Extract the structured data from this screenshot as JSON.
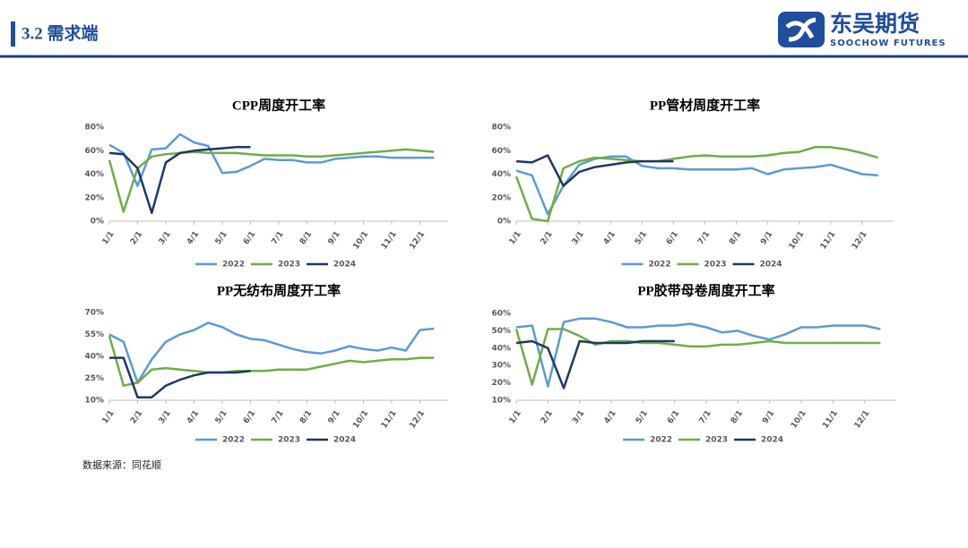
{
  "header": {
    "section": "3.2 需求端",
    "logo_cn": "东吴期货",
    "logo_en": "SOOCHOW FUTURES"
  },
  "source": "数据来源：同花顺",
  "chart_data": [
    {
      "type": "line",
      "title": "CPP周度开工率",
      "xlim": [
        0,
        24
      ],
      "xticks": [
        {
          "value": 0,
          "label": "1/1"
        },
        {
          "value": 2,
          "label": "2/1"
        },
        {
          "value": 4,
          "label": "3/1"
        },
        {
          "value": 6,
          "label": "4/1"
        },
        {
          "value": 8,
          "label": "5/1"
        },
        {
          "value": 10,
          "label": "6/1"
        },
        {
          "value": 12,
          "label": "7/1"
        },
        {
          "value": 14,
          "label": "8/1"
        },
        {
          "value": 16,
          "label": "9/1"
        },
        {
          "value": 18,
          "label": "10/1"
        },
        {
          "value": 20,
          "label": "11/1"
        },
        {
          "value": 22,
          "label": "12/1"
        }
      ],
      "ylim": [
        0,
        80
      ],
      "yticks": [
        {
          "value": 0,
          "label": "0%"
        },
        {
          "value": 20,
          "label": "20%"
        },
        {
          "value": 40,
          "label": "40%"
        },
        {
          "value": 60,
          "label": "60%"
        },
        {
          "value": 80,
          "label": "80%"
        }
      ],
      "grid": false,
      "legend": "bottom",
      "series": [
        {
          "name": "2022",
          "color": "#5b9bd5",
          "values": [
            65,
            58,
            30,
            61,
            62,
            74,
            67,
            64,
            41,
            42,
            47,
            53,
            52,
            52,
            50,
            50,
            53,
            54,
            55,
            55,
            54,
            54,
            54,
            54
          ]
        },
        {
          "name": "2023",
          "color": "#70ad47",
          "values": [
            52,
            8,
            45,
            55,
            57,
            58,
            59,
            58,
            58,
            58,
            57,
            56,
            56,
            56,
            55,
            55,
            56,
            57,
            58,
            59,
            60,
            61,
            60,
            59
          ]
        },
        {
          "name": "2024",
          "color": "#1f3864",
          "values": [
            58,
            57,
            45,
            7,
            50,
            58,
            60,
            61,
            62,
            63,
            63
          ]
        }
      ]
    },
    {
      "type": "line",
      "title": "PP管材周度开工率",
      "xlim": [
        0,
        24
      ],
      "xticks": [
        {
          "value": 0,
          "label": "1/1"
        },
        {
          "value": 2,
          "label": "2/1"
        },
        {
          "value": 4,
          "label": "3/1"
        },
        {
          "value": 6,
          "label": "4/1"
        },
        {
          "value": 8,
          "label": "5/1"
        },
        {
          "value": 10,
          "label": "6/1"
        },
        {
          "value": 12,
          "label": "7/1"
        },
        {
          "value": 14,
          "label": "8/1"
        },
        {
          "value": 16,
          "label": "9/1"
        },
        {
          "value": 18,
          "label": "10/1"
        },
        {
          "value": 20,
          "label": "11/1"
        },
        {
          "value": 22,
          "label": "12/1"
        }
      ],
      "ylim": [
        0,
        80
      ],
      "yticks": [
        {
          "value": 0,
          "label": "0%"
        },
        {
          "value": 20,
          "label": "20%"
        },
        {
          "value": 40,
          "label": "40%"
        },
        {
          "value": 60,
          "label": "60%"
        },
        {
          "value": 80,
          "label": "80%"
        }
      ],
      "grid": false,
      "legend": "bottom",
      "series": [
        {
          "name": "2022",
          "color": "#5b9bd5",
          "values": [
            43,
            39,
            6,
            30,
            48,
            53,
            55,
            55,
            47,
            45,
            45,
            44,
            44,
            44,
            44,
            45,
            40,
            44,
            45,
            46,
            48,
            44,
            40,
            39
          ]
        },
        {
          "name": "2023",
          "color": "#70ad47",
          "values": [
            38,
            2,
            0,
            45,
            51,
            54,
            53,
            52,
            51,
            51,
            53,
            55,
            56,
            55,
            55,
            55,
            56,
            58,
            59,
            63,
            63,
            61,
            58,
            54
          ]
        },
        {
          "name": "2024",
          "color": "#1f3864",
          "values": [
            51,
            50,
            56,
            30,
            42,
            46,
            48,
            50,
            51,
            51,
            51
          ]
        }
      ]
    },
    {
      "type": "line",
      "title": "PP无纺布周度开工率",
      "xlim": [
        0,
        24
      ],
      "xticks": [
        {
          "value": 0,
          "label": "1/1"
        },
        {
          "value": 2,
          "label": "2/1"
        },
        {
          "value": 4,
          "label": "3/1"
        },
        {
          "value": 6,
          "label": "4/1"
        },
        {
          "value": 8,
          "label": "5/1"
        },
        {
          "value": 10,
          "label": "6/1"
        },
        {
          "value": 12,
          "label": "7/1"
        },
        {
          "value": 14,
          "label": "8/1"
        },
        {
          "value": 16,
          "label": "9/1"
        },
        {
          "value": 18,
          "label": "10/1"
        },
        {
          "value": 20,
          "label": "11/1"
        },
        {
          "value": 22,
          "label": "12/1"
        }
      ],
      "ylim": [
        10,
        70
      ],
      "yticks": [
        {
          "value": 10,
          "label": "10%"
        },
        {
          "value": 25,
          "label": "25%"
        },
        {
          "value": 40,
          "label": "40%"
        },
        {
          "value": 55,
          "label": "55%"
        },
        {
          "value": 70,
          "label": "70%"
        }
      ],
      "grid": false,
      "legend": "bottom",
      "series": [
        {
          "name": "2022",
          "color": "#5b9bd5",
          "values": [
            55,
            50,
            22,
            38,
            50,
            55,
            58,
            63,
            60,
            55,
            52,
            51,
            48,
            45,
            43,
            42,
            44,
            47,
            45,
            44,
            46,
            44,
            58,
            59
          ]
        },
        {
          "name": "2023",
          "color": "#70ad47",
          "values": [
            54,
            20,
            22,
            31,
            32,
            31,
            30,
            29,
            29,
            30,
            30,
            30,
            31,
            31,
            31,
            33,
            35,
            37,
            36,
            37,
            38,
            38,
            39,
            39
          ]
        },
        {
          "name": "2024",
          "color": "#1f3864",
          "values": [
            39,
            39,
            12,
            12,
            20,
            24,
            27,
            29,
            29,
            29,
            30
          ]
        }
      ]
    },
    {
      "type": "line",
      "title": "PP胶带母卷周度开工率",
      "xlim": [
        0,
        24
      ],
      "xticks": [
        {
          "value": 0,
          "label": "1/1"
        },
        {
          "value": 2,
          "label": "2/1"
        },
        {
          "value": 4,
          "label": "3/1"
        },
        {
          "value": 6,
          "label": "4/1"
        },
        {
          "value": 8,
          "label": "5/1"
        },
        {
          "value": 10,
          "label": "6/1"
        },
        {
          "value": 12,
          "label": "7/1"
        },
        {
          "value": 14,
          "label": "8/1"
        },
        {
          "value": 16,
          "label": "9/1"
        },
        {
          "value": 18,
          "label": "10/1"
        },
        {
          "value": 20,
          "label": "11/1"
        },
        {
          "value": 22,
          "label": "12/1"
        }
      ],
      "ylim": [
        10,
        60
      ],
      "yticks": [
        {
          "value": 10,
          "label": "10%"
        },
        {
          "value": 20,
          "label": "20%"
        },
        {
          "value": 30,
          "label": "30%"
        },
        {
          "value": 40,
          "label": "40%"
        },
        {
          "value": 50,
          "label": "50%"
        },
        {
          "value": 60,
          "label": "60%"
        }
      ],
      "grid": false,
      "legend": "bottom",
      "series": [
        {
          "name": "2022",
          "color": "#5b9bd5",
          "values": [
            52,
            53,
            18,
            55,
            57,
            57,
            55,
            52,
            52,
            53,
            53,
            54,
            52,
            49,
            50,
            47,
            45,
            48,
            52,
            52,
            53,
            53,
            53,
            51
          ]
        },
        {
          "name": "2023",
          "color": "#70ad47",
          "values": [
            51,
            19,
            51,
            51,
            47,
            42,
            44,
            44,
            43,
            43,
            42,
            41,
            41,
            42,
            42,
            43,
            44,
            43,
            43,
            43,
            43,
            43,
            43,
            43
          ]
        },
        {
          "name": "2024",
          "color": "#1f3864",
          "values": [
            43,
            44,
            40,
            17,
            44,
            43,
            43,
            43,
            44,
            44,
            44
          ]
        }
      ]
    }
  ]
}
